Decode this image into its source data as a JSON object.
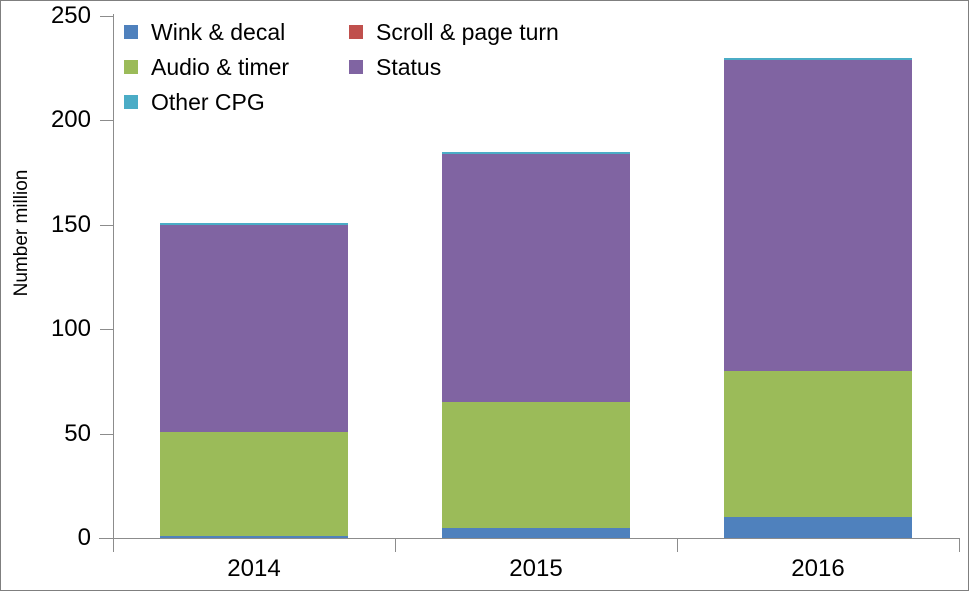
{
  "chart_data": {
    "type": "bar",
    "stacked": true,
    "title": "",
    "ylabel": "Number million",
    "xlabel": "",
    "ylim": [
      0,
      250
    ],
    "yticks": [
      0,
      50,
      100,
      150,
      200,
      250
    ],
    "grid": false,
    "legend_position": "top-left inside plot area, two columns",
    "categories": [
      "2014",
      "2015",
      "2016"
    ],
    "series": [
      {
        "name": "Wink & decal",
        "color": "#4F81BD",
        "values": [
          1,
          5,
          10
        ]
      },
      {
        "name": "Scroll & page turn",
        "color": "#C0504D",
        "values": [
          0,
          0,
          0
        ]
      },
      {
        "name": "Audio & timer",
        "color": "#9BBB59",
        "values": [
          50,
          60,
          70
        ]
      },
      {
        "name": "Status",
        "color": "#8064A2",
        "values": [
          99,
          119,
          149
        ]
      },
      {
        "name": "Other CPG",
        "color": "#4BACC6",
        "values": [
          1,
          1,
          1
        ]
      }
    ]
  },
  "axis": {
    "line_color": "#8C8C8C",
    "text_color": "#000000"
  }
}
